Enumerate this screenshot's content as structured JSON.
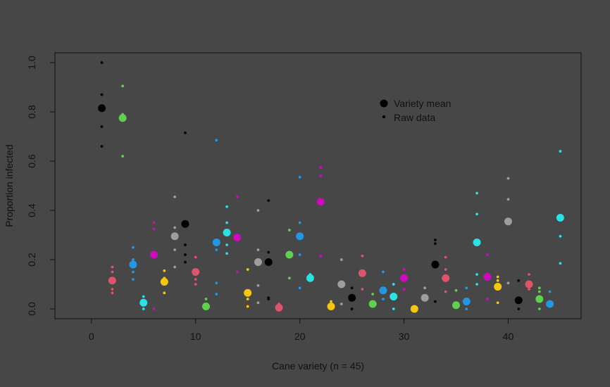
{
  "chart_data": {
    "type": "scatter",
    "background": "#474747",
    "xlabel": "Cane variety (n = 45)",
    "ylabel": "Proportion infected",
    "xlim": [
      -3.5,
      47
    ],
    "ylim": [
      -0.04,
      1.04
    ],
    "x_ticks": [
      0,
      10,
      20,
      30,
      40
    ],
    "x_tick_labels": [
      "0",
      "10",
      "20",
      "30",
      "40"
    ],
    "y_ticks": [
      0.0,
      0.2,
      0.4,
      0.6,
      0.8,
      1.0
    ],
    "y_tick_labels": [
      "0.0",
      "0.2",
      "0.4",
      "0.6",
      "0.8",
      "1.0"
    ],
    "palette": [
      "#000000",
      "#DF536B",
      "#61D04F",
      "#2297E6",
      "#28E2E5",
      "#CD0BBC",
      "#F5C710",
      "#9E9E9E"
    ],
    "legend": {
      "position": "top-right",
      "entries": [
        {
          "label": "Variety mean",
          "marker": "large-dot"
        },
        {
          "label": "Raw data",
          "marker": "small-dot"
        }
      ]
    },
    "series": [
      {
        "name": "Variety mean",
        "points": [
          {
            "x": 1,
            "y": 0.815
          },
          {
            "x": 2,
            "y": 0.115
          },
          {
            "x": 3,
            "y": 0.775
          },
          {
            "x": 4,
            "y": 0.18
          },
          {
            "x": 5,
            "y": 0.025
          },
          {
            "x": 6,
            "y": 0.22
          },
          {
            "x": 7,
            "y": 0.11
          },
          {
            "x": 8,
            "y": 0.295
          },
          {
            "x": 9,
            "y": 0.345
          },
          {
            "x": 10,
            "y": 0.15
          },
          {
            "x": 11,
            "y": 0.01
          },
          {
            "x": 12,
            "y": 0.27
          },
          {
            "x": 13,
            "y": 0.31
          },
          {
            "x": 14,
            "y": 0.29
          },
          {
            "x": 15,
            "y": 0.065
          },
          {
            "x": 16,
            "y": 0.19
          },
          {
            "x": 17,
            "y": 0.19
          },
          {
            "x": 18,
            "y": 0.005
          },
          {
            "x": 19,
            "y": 0.22
          },
          {
            "x": 20,
            "y": 0.295
          },
          {
            "x": 21,
            "y": 0.125
          },
          {
            "x": 22,
            "y": 0.435
          },
          {
            "x": 23,
            "y": 0.01
          },
          {
            "x": 24,
            "y": 0.1
          },
          {
            "x": 25,
            "y": 0.045
          },
          {
            "x": 26,
            "y": 0.145
          },
          {
            "x": 27,
            "y": 0.02
          },
          {
            "x": 28,
            "y": 0.075
          },
          {
            "x": 29,
            "y": 0.05
          },
          {
            "x": 30,
            "y": 0.125
          },
          {
            "x": 31,
            "y": 0.0
          },
          {
            "x": 32,
            "y": 0.045
          },
          {
            "x": 33,
            "y": 0.18
          },
          {
            "x": 34,
            "y": 0.125
          },
          {
            "x": 35,
            "y": 0.015
          },
          {
            "x": 36,
            "y": 0.03
          },
          {
            "x": 37,
            "y": 0.27
          },
          {
            "x": 38,
            "y": 0.13
          },
          {
            "x": 39,
            "y": 0.09
          },
          {
            "x": 40,
            "y": 0.355
          },
          {
            "x": 41,
            "y": 0.035
          },
          {
            "x": 42,
            "y": 0.1
          },
          {
            "x": 43,
            "y": 0.04
          },
          {
            "x": 44,
            "y": 0.02
          },
          {
            "x": 45,
            "y": 0.37
          }
        ]
      },
      {
        "name": "Raw data",
        "points": [
          {
            "x": 1,
            "y": 1.0
          },
          {
            "x": 1,
            "y": 0.87
          },
          {
            "x": 1,
            "y": 0.74
          },
          {
            "x": 1,
            "y": 0.66
          },
          {
            "x": 2,
            "y": 0.17
          },
          {
            "x": 2,
            "y": 0.15
          },
          {
            "x": 2,
            "y": 0.08
          },
          {
            "x": 2,
            "y": 0.065
          },
          {
            "x": 3,
            "y": 0.905
          },
          {
            "x": 3,
            "y": 0.79
          },
          {
            "x": 3,
            "y": 0.62
          },
          {
            "x": 4,
            "y": 0.25
          },
          {
            "x": 4,
            "y": 0.2
          },
          {
            "x": 4,
            "y": 0.15
          },
          {
            "x": 4,
            "y": 0.12
          },
          {
            "x": 5,
            "y": 0.05
          },
          {
            "x": 5,
            "y": 0.0
          },
          {
            "x": 6,
            "y": 0.35
          },
          {
            "x": 6,
            "y": 0.325
          },
          {
            "x": 6,
            "y": 0.0
          },
          {
            "x": 7,
            "y": 0.155
          },
          {
            "x": 7,
            "y": 0.125
          },
          {
            "x": 7,
            "y": 0.065
          },
          {
            "x": 8,
            "y": 0.455
          },
          {
            "x": 8,
            "y": 0.33
          },
          {
            "x": 8,
            "y": 0.24
          },
          {
            "x": 8,
            "y": 0.17
          },
          {
            "x": 9,
            "y": 0.715
          },
          {
            "x": 9,
            "y": 0.26
          },
          {
            "x": 9,
            "y": 0.22
          },
          {
            "x": 9,
            "y": 0.19
          },
          {
            "x": 10,
            "y": 0.21
          },
          {
            "x": 10,
            "y": 0.12
          },
          {
            "x": 10,
            "y": 0.1
          },
          {
            "x": 11,
            "y": 0.04
          },
          {
            "x": 12,
            "y": 0.685
          },
          {
            "x": 12,
            "y": 0.24
          },
          {
            "x": 12,
            "y": 0.105
          },
          {
            "x": 12,
            "y": 0.06
          },
          {
            "x": 13,
            "y": 0.415
          },
          {
            "x": 13,
            "y": 0.35
          },
          {
            "x": 13,
            "y": 0.26
          },
          {
            "x": 13,
            "y": 0.225
          },
          {
            "x": 14,
            "y": 0.455
          },
          {
            "x": 14,
            "y": 0.15
          },
          {
            "x": 15,
            "y": 0.16
          },
          {
            "x": 15,
            "y": 0.04
          },
          {
            "x": 15,
            "y": 0.01
          },
          {
            "x": 16,
            "y": 0.4
          },
          {
            "x": 16,
            "y": 0.24
          },
          {
            "x": 16,
            "y": 0.095
          },
          {
            "x": 16,
            "y": 0.025
          },
          {
            "x": 17,
            "y": 0.44
          },
          {
            "x": 17,
            "y": 0.23
          },
          {
            "x": 17,
            "y": 0.045
          },
          {
            "x": 17,
            "y": 0.04
          },
          {
            "x": 18,
            "y": 0.02
          },
          {
            "x": 19,
            "y": 0.32
          },
          {
            "x": 19,
            "y": 0.125
          },
          {
            "x": 20,
            "y": 0.535
          },
          {
            "x": 20,
            "y": 0.35
          },
          {
            "x": 20,
            "y": 0.22
          },
          {
            "x": 20,
            "y": 0.085
          },
          {
            "x": 21,
            "y": 0.14
          },
          {
            "x": 22,
            "y": 0.575
          },
          {
            "x": 22,
            "y": 0.54
          },
          {
            "x": 22,
            "y": 0.215
          },
          {
            "x": 23,
            "y": 0.03
          },
          {
            "x": 24,
            "y": 0.2
          },
          {
            "x": 24,
            "y": 0.02
          },
          {
            "x": 25,
            "y": 0.085
          },
          {
            "x": 25,
            "y": 0.0
          },
          {
            "x": 26,
            "y": 0.215
          },
          {
            "x": 26,
            "y": 0.08
          },
          {
            "x": 27,
            "y": 0.06
          },
          {
            "x": 28,
            "y": 0.15
          },
          {
            "x": 28,
            "y": 0.04
          },
          {
            "x": 29,
            "y": 0.1
          },
          {
            "x": 29,
            "y": 0.0
          },
          {
            "x": 30,
            "y": 0.16
          },
          {
            "x": 30,
            "y": 0.08
          },
          {
            "x": 32,
            "y": 0.085
          },
          {
            "x": 33,
            "y": 0.28
          },
          {
            "x": 33,
            "y": 0.265
          },
          {
            "x": 33,
            "y": 0.03
          },
          {
            "x": 34,
            "y": 0.21
          },
          {
            "x": 34,
            "y": 0.16
          },
          {
            "x": 34,
            "y": 0.07
          },
          {
            "x": 35,
            "y": 0.075
          },
          {
            "x": 35,
            "y": 0.01
          },
          {
            "x": 36,
            "y": 0.085
          },
          {
            "x": 36,
            "y": 0.0
          },
          {
            "x": 37,
            "y": 0.47
          },
          {
            "x": 37,
            "y": 0.385
          },
          {
            "x": 37,
            "y": 0.14
          },
          {
            "x": 37,
            "y": 0.1
          },
          {
            "x": 38,
            "y": 0.22
          },
          {
            "x": 38,
            "y": 0.04
          },
          {
            "x": 39,
            "y": 0.13
          },
          {
            "x": 39,
            "y": 0.115
          },
          {
            "x": 39,
            "y": 0.025
          },
          {
            "x": 40,
            "y": 0.53
          },
          {
            "x": 40,
            "y": 0.445
          },
          {
            "x": 40,
            "y": 0.105
          },
          {
            "x": 41,
            "y": 0.115
          },
          {
            "x": 41,
            "y": 0.0
          },
          {
            "x": 42,
            "y": 0.14
          },
          {
            "x": 42,
            "y": 0.08
          },
          {
            "x": 43,
            "y": 0.085
          },
          {
            "x": 43,
            "y": 0.07
          },
          {
            "x": 43,
            "y": 0.0
          },
          {
            "x": 44,
            "y": 0.07
          },
          {
            "x": 44,
            "y": 0.01
          },
          {
            "x": 45,
            "y": 0.64
          },
          {
            "x": 45,
            "y": 0.295
          },
          {
            "x": 45,
            "y": 0.185
          }
        ]
      }
    ]
  }
}
